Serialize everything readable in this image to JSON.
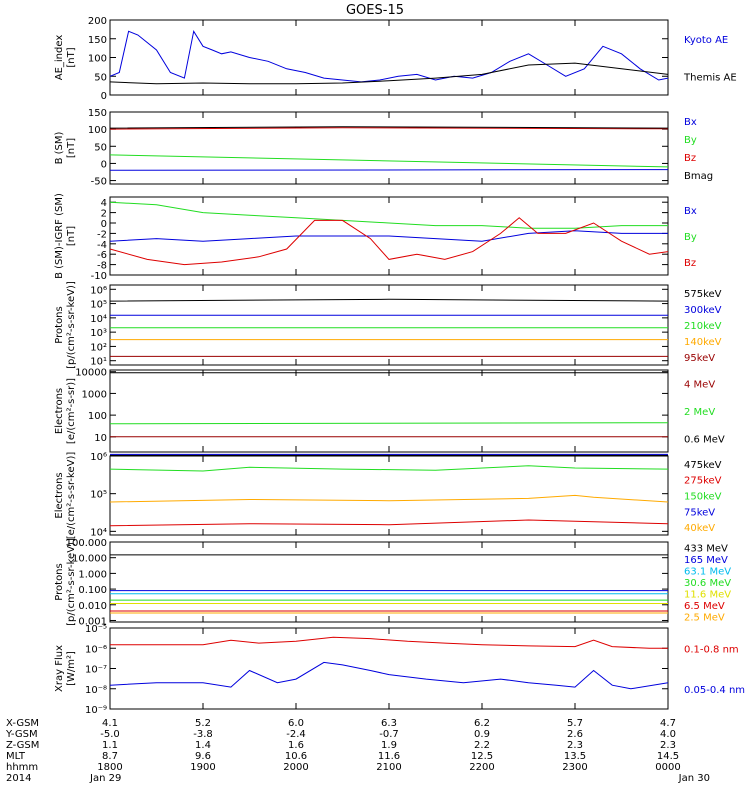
{
  "title": "GOES-15",
  "colors": {
    "black": "#000000",
    "blue": "#0000dd",
    "green": "#22dd22",
    "red": "#dd0000",
    "orange": "#ffaa00",
    "yellow": "#e0e000",
    "cyan": "#00bbee",
    "magenta": "#aa00aa",
    "darkred": "#990000"
  },
  "footer": {
    "rows": [
      {
        "label": "X-GSM",
        "values": [
          "4.1",
          "5.2",
          "6.0",
          "6.3",
          "6.2",
          "5.7",
          "4.7"
        ]
      },
      {
        "label": "Y-GSM",
        "values": [
          "-5.0",
          "-3.8",
          "-2.4",
          "-0.7",
          "0.9",
          "2.6",
          "4.0"
        ]
      },
      {
        "label": "Z-GSM",
        "values": [
          "1.1",
          "1.4",
          "1.6",
          "1.9",
          "2.2",
          "2.3",
          "2.3"
        ]
      },
      {
        "label": "MLT",
        "values": [
          "8.7",
          "9.6",
          "10.6",
          "11.6",
          "12.5",
          "13.5",
          "14.5"
        ]
      },
      {
        "label": "hhmm",
        "values": [
          "1800",
          "1900",
          "2000",
          "2100",
          "2200",
          "2300",
          "0000"
        ]
      },
      {
        "label": "2014",
        "values": [
          "Jan 29",
          "",
          "",
          "",
          "",
          "",
          "Jan 30"
        ]
      }
    ]
  },
  "chart_data": [
    {
      "type": "line",
      "ylabel": "AE_index [nT]",
      "ylim": [
        0,
        200
      ],
      "yscale": "linear",
      "yticks": [
        {
          "v": 0,
          "t": "0"
        },
        {
          "v": 50,
          "t": "50"
        },
        {
          "v": 100,
          "t": "100"
        },
        {
          "v": 150,
          "t": "150"
        },
        {
          "v": 200,
          "t": "200"
        }
      ],
      "xlim": [
        18,
        24
      ],
      "series": [
        {
          "name": "Kyoto AE",
          "color": "#0000dd",
          "x": [
            18.0,
            18.1,
            18.2,
            18.3,
            18.4,
            18.5,
            18.65,
            18.8,
            18.9,
            19.0,
            19.1,
            19.2,
            19.3,
            19.5,
            19.7,
            19.9,
            20.1,
            20.3,
            20.5,
            20.7,
            20.9,
            21.1,
            21.3,
            21.5,
            21.7,
            21.9,
            22.1,
            22.3,
            22.5,
            22.7,
            22.9,
            23.1,
            23.3,
            23.5,
            23.7,
            23.9,
            24.0
          ],
          "y": [
            50,
            60,
            170,
            160,
            140,
            120,
            60,
            45,
            170,
            130,
            120,
            110,
            115,
            100,
            90,
            70,
            60,
            45,
            40,
            35,
            40,
            50,
            55,
            40,
            50,
            45,
            60,
            90,
            110,
            80,
            50,
            70,
            130,
            110,
            70,
            40,
            45
          ]
        },
        {
          "name": "Themis AE",
          "color": "#000000",
          "x": [
            18.0,
            18.5,
            19.0,
            19.5,
            20.0,
            20.5,
            21.0,
            21.5,
            22.0,
            22.5,
            23.0,
            23.5,
            24.0
          ],
          "y": [
            35,
            30,
            32,
            30,
            30,
            32,
            38,
            45,
            55,
            80,
            85,
            70,
            55
          ]
        }
      ]
    },
    {
      "type": "line",
      "ylabel": "B (SM) [nT]",
      "ylim": [
        -60,
        150
      ],
      "yscale": "linear",
      "yticks": [
        {
          "v": -50,
          "t": "-50"
        },
        {
          "v": 0,
          "t": "0"
        },
        {
          "v": 50,
          "t": "50"
        },
        {
          "v": 100,
          "t": "100"
        },
        {
          "v": 150,
          "t": "150"
        }
      ],
      "xlim": [
        18,
        24
      ],
      "series": [
        {
          "name": "Bx",
          "color": "#0000dd",
          "x": [
            18,
            24
          ],
          "y": [
            -20,
            -18
          ]
        },
        {
          "name": "By",
          "color": "#22dd22",
          "x": [
            18,
            24
          ],
          "y": [
            25,
            -10
          ]
        },
        {
          "name": "Bz",
          "color": "#dd0000",
          "x": [
            18,
            20.5,
            24
          ],
          "y": [
            100,
            104,
            101
          ]
        },
        {
          "name": "Bmag",
          "color": "#000000",
          "x": [
            18,
            20.5,
            24
          ],
          "y": [
            103,
            107,
            103
          ]
        }
      ]
    },
    {
      "type": "line",
      "ylabel": "B (SM)-IGRF (SM) [nT]",
      "ylim": [
        -10,
        5
      ],
      "yscale": "linear",
      "yticks": [
        {
          "v": -10,
          "t": "-10"
        },
        {
          "v": -8,
          "t": "-8"
        },
        {
          "v": -6,
          "t": "-6"
        },
        {
          "v": -4,
          "t": "-4"
        },
        {
          "v": -2,
          "t": "-2"
        },
        {
          "v": 0,
          "t": "0"
        },
        {
          "v": 2,
          "t": "2"
        },
        {
          "v": 4,
          "t": "4"
        }
      ],
      "xlim": [
        18,
        24
      ],
      "series": [
        {
          "name": "Bx",
          "color": "#0000dd",
          "x": [
            18.0,
            18.5,
            19.0,
            19.5,
            20.0,
            20.5,
            21.0,
            21.5,
            22.0,
            22.5,
            23.0,
            23.5,
            24.0
          ],
          "y": [
            -3.5,
            -3.0,
            -3.5,
            -3.0,
            -2.5,
            -2.5,
            -2.5,
            -3.0,
            -3.5,
            -2.0,
            -1.5,
            -2.0,
            -2.0
          ]
        },
        {
          "name": "By",
          "color": "#22dd22",
          "x": [
            18.0,
            18.5,
            19.0,
            19.5,
            20.0,
            20.5,
            21.0,
            21.5,
            22.0,
            22.5,
            23.0,
            23.5,
            24.0
          ],
          "y": [
            4.0,
            3.5,
            2.0,
            1.5,
            1.0,
            0.5,
            0.0,
            -0.5,
            -0.5,
            -1.0,
            -1.0,
            -0.5,
            -0.5
          ]
        },
        {
          "name": "Bz",
          "color": "#dd0000",
          "x": [
            18.0,
            18.4,
            18.8,
            19.2,
            19.6,
            19.9,
            20.2,
            20.5,
            20.8,
            21.0,
            21.3,
            21.6,
            21.9,
            22.2,
            22.4,
            22.6,
            22.9,
            23.2,
            23.5,
            23.8,
            24.0
          ],
          "y": [
            -5.0,
            -7.0,
            -8.0,
            -7.5,
            -6.5,
            -5.0,
            0.5,
            0.5,
            -3.0,
            -7.0,
            -6.0,
            -7.0,
            -5.5,
            -2.0,
            1.0,
            -2.0,
            -2.0,
            0.0,
            -3.5,
            -6.0,
            -5.5
          ]
        }
      ]
    },
    {
      "type": "line",
      "ylabel": "Protons [p/(cm²-s-sr-keV)]",
      "ylim": [
        5,
        2000000
      ],
      "yscale": "log",
      "yticks": [
        {
          "v": 10,
          "t": "10¹"
        },
        {
          "v": 100,
          "t": "10²"
        },
        {
          "v": 1000,
          "t": "10³"
        },
        {
          "v": 10000,
          "t": "10⁴"
        },
        {
          "v": 100000,
          "t": "10⁵"
        },
        {
          "v": 1000000,
          "t": "10⁶"
        }
      ],
      "xlim": [
        18,
        24
      ],
      "series": [
        {
          "name": "575keV",
          "color": "#000000",
          "x": [
            18,
            21,
            24
          ],
          "y": [
            150000,
            200000,
            150000
          ]
        },
        {
          "name": "300keV",
          "color": "#0000dd",
          "x": [
            18,
            24
          ],
          "y": [
            15000,
            15000
          ]
        },
        {
          "name": "210keV",
          "color": "#22dd22",
          "x": [
            18,
            24
          ],
          "y": [
            2000,
            2000
          ]
        },
        {
          "name": "140keV",
          "color": "#ffaa00",
          "x": [
            18,
            24
          ],
          "y": [
            300,
            300
          ]
        },
        {
          "name": "95keV",
          "color": "#990000",
          "x": [
            18,
            24
          ],
          "y": [
            20,
            20
          ]
        }
      ]
    },
    {
      "type": "line",
      "ylabel": "Electrons [e/(cm²-s-sr)]",
      "ylim": [
        2,
        12000
      ],
      "yscale": "log",
      "yticks": [
        {
          "v": 10,
          "t": "10"
        },
        {
          "v": 100,
          "t": "100"
        },
        {
          "v": 1000,
          "t": "1000"
        },
        {
          "v": 10000,
          "t": "10000"
        }
      ],
      "xlim": [
        18,
        24
      ],
      "series": [
        {
          "name": "4 MeV",
          "color": "#990000",
          "x": [
            18,
            24
          ],
          "y": [
            10,
            10
          ]
        },
        {
          "name": "2 MeV",
          "color": "#22dd22",
          "x": [
            18,
            24
          ],
          "y": [
            40,
            45
          ]
        },
        {
          "name": "0.6 MeV",
          "color": "#000000",
          "x": [
            18,
            24
          ],
          "y": [
            9000,
            9000
          ]
        }
      ]
    },
    {
      "type": "line",
      "ylabel": "Electrons [e/(cm²-s-sr-keV)]",
      "ylim": [
        8000,
        1000000
      ],
      "yscale": "log",
      "yticks": [
        {
          "v": 10000,
          "t": "10⁴"
        },
        {
          "v": 100000,
          "t": "10⁵"
        },
        {
          "v": 1000000,
          "t": "10⁶"
        }
      ],
      "xlim": [
        18,
        24
      ],
      "series": [
        {
          "name": "475keV",
          "color": "#000000",
          "x": [
            18,
            24
          ],
          "y": [
            1050000,
            1050000
          ]
        },
        {
          "name": "275keV",
          "color": "#dd0000",
          "x": [
            18.0,
            19.5,
            21.0,
            22.5,
            24.0
          ],
          "y": [
            14000,
            16000,
            15000,
            20000,
            16000
          ]
        },
        {
          "name": "150keV",
          "color": "#22dd22",
          "x": [
            18.0,
            19.0,
            19.5,
            20.5,
            21.5,
            22.5,
            23.0,
            24.0
          ],
          "y": [
            450000,
            400000,
            500000,
            450000,
            420000,
            550000,
            480000,
            450000
          ]
        },
        {
          "name": "75keV",
          "color": "#0000dd",
          "x": [
            18,
            24
          ],
          "y": [
            1100000,
            1100000
          ]
        },
        {
          "name": "40keV",
          "color": "#ffaa00",
          "x": [
            18.0,
            19.5,
            21.0,
            22.5,
            23.0,
            23.2,
            24.0
          ],
          "y": [
            60000,
            70000,
            65000,
            75000,
            90000,
            80000,
            60000
          ]
        }
      ]
    },
    {
      "type": "line",
      "ylabel": "Protons [p/(cm²-s-sr-keV)]",
      "ylim": [
        0.0008,
        100
      ],
      "yscale": "log",
      "yticks": [
        {
          "v": 0.001,
          "t": "0.001"
        },
        {
          "v": 0.01,
          "t": "0.010"
        },
        {
          "v": 0.1,
          "t": "0.100"
        },
        {
          "v": 1,
          "t": "1.000"
        },
        {
          "v": 10,
          "t": "10.000"
        },
        {
          "v": 100,
          "t": "100.000"
        }
      ],
      "xlim": [
        18,
        24
      ],
      "series": [
        {
          "name": "433 MeV",
          "color": "#000000",
          "x": [
            18,
            24
          ],
          "y": [
            15,
            15
          ]
        },
        {
          "name": "165 MeV",
          "color": "#0000dd",
          "x": [
            18,
            24
          ],
          "y": [
            0.08,
            0.08
          ]
        },
        {
          "name": "63.1 MeV",
          "color": "#00bbee",
          "x": [
            18,
            24
          ],
          "y": [
            0.05,
            0.05
          ]
        },
        {
          "name": "30.6 MeV",
          "color": "#22dd22",
          "x": [
            18,
            24
          ],
          "y": [
            0.02,
            0.02
          ]
        },
        {
          "name": "11.6 MeV",
          "color": "#e0e000",
          "x": [
            18,
            24
          ],
          "y": [
            0.012,
            0.012
          ]
        },
        {
          "name": "6.5 MeV",
          "color": "#dd0000",
          "x": [
            18,
            24
          ],
          "y": [
            0.004,
            0.004
          ]
        },
        {
          "name": "2.5 MeV",
          "color": "#ffaa00",
          "x": [
            18,
            24
          ],
          "y": [
            0.003,
            0.003
          ]
        }
      ]
    },
    {
      "type": "line",
      "ylabel": "Xray Flux [W/m²]",
      "ylim": [
        1e-09,
        1e-05
      ],
      "yscale": "log",
      "yticks": [
        {
          "v": 1e-09,
          "t": "10⁻⁹"
        },
        {
          "v": 1e-08,
          "t": "10⁻⁸"
        },
        {
          "v": 1e-07,
          "t": "10⁻⁷"
        },
        {
          "v": 1e-06,
          "t": "10⁻⁶"
        },
        {
          "v": 1e-05,
          "t": "10⁻⁵"
        }
      ],
      "xlim": [
        18,
        24
      ],
      "series": [
        {
          "name": "0.1-0.8 nm",
          "color": "#dd0000",
          "x": [
            18.0,
            19.0,
            19.3,
            19.6,
            20.0,
            20.4,
            20.8,
            21.2,
            21.6,
            22.0,
            22.5,
            23.0,
            23.2,
            23.4,
            23.8,
            24.0
          ],
          "y": [
            1.5e-06,
            1.5e-06,
            2.5e-06,
            1.8e-06,
            2.2e-06,
            3.5e-06,
            3e-06,
            2.2e-06,
            1.8e-06,
            1.5e-06,
            1.3e-06,
            1.2e-06,
            2.5e-06,
            1.2e-06,
            1e-06,
            1e-06
          ]
        },
        {
          "name": "0.05-0.4 nm",
          "color": "#0000dd",
          "x": [
            18.0,
            18.5,
            19.0,
            19.3,
            19.5,
            19.8,
            20.0,
            20.3,
            20.5,
            20.8,
            21.0,
            21.4,
            21.8,
            22.2,
            22.5,
            22.8,
            23.0,
            23.2,
            23.4,
            23.6,
            24.0
          ],
          "y": [
            1.5e-08,
            2e-08,
            2e-08,
            1.2e-08,
            8e-08,
            2e-08,
            3e-08,
            2e-07,
            1.5e-07,
            8e-08,
            5e-08,
            3e-08,
            2e-08,
            3e-08,
            2e-08,
            1.5e-08,
            1.2e-08,
            8e-08,
            1.5e-08,
            1e-08,
            2e-08
          ]
        }
      ]
    }
  ]
}
